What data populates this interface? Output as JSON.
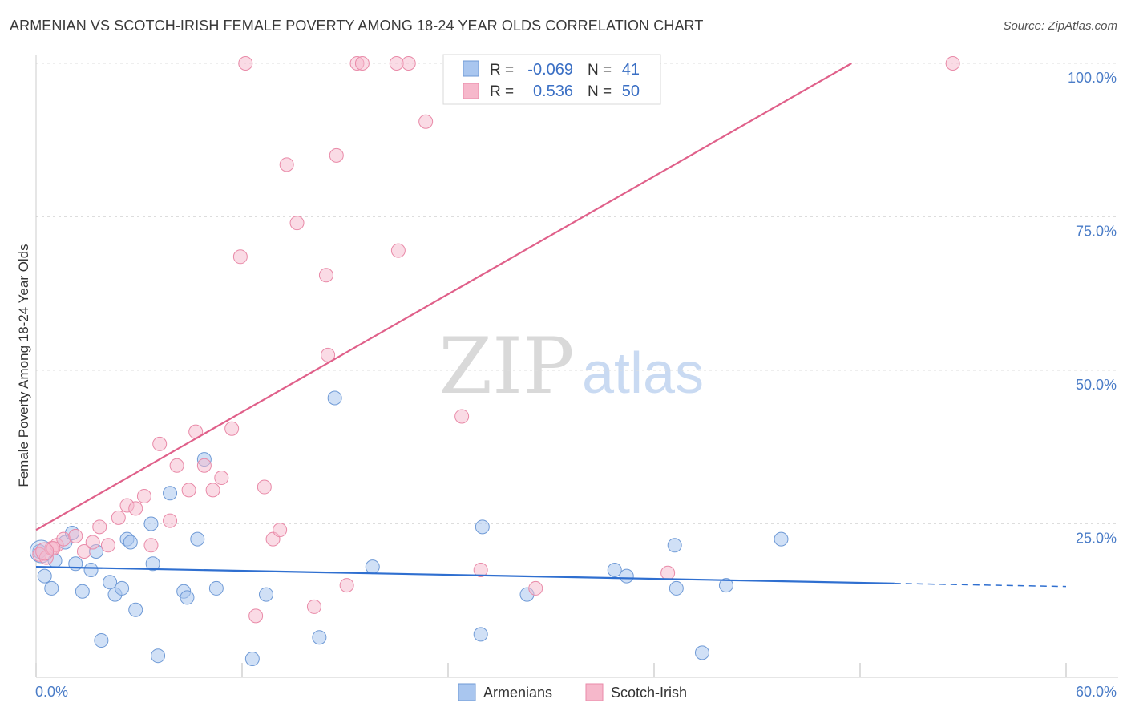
{
  "title": "ARMENIAN VS SCOTCH-IRISH FEMALE POVERTY AMONG 18-24 YEAR OLDS CORRELATION CHART",
  "source": "Source: ZipAtlas.com",
  "watermark": {
    "zip": "ZIP",
    "atlas": "atlas"
  },
  "colors": {
    "armenians_fill": "#a9c6ef",
    "armenians_stroke": "#6f9ad6",
    "armenians_line": "#2f6fd0",
    "scotch_fill": "#f6b8cb",
    "scotch_stroke": "#e98aa8",
    "scotch_line": "#e0608a",
    "tick_text": "#4a7cc7",
    "grid": "#dddddd"
  },
  "legend_top": {
    "rows": [
      {
        "r_label": "R =",
        "r_value": "-0.069",
        "n_label": "N =",
        "n_value": "41"
      },
      {
        "r_label": "R =",
        "r_value": "0.536",
        "n_label": "N =",
        "n_value": "50"
      }
    ]
  },
  "chart_data": {
    "type": "scatter",
    "title": "ARMENIAN VS SCOTCH-IRISH FEMALE POVERTY AMONG 18-24 YEAR OLDS CORRELATION CHART",
    "xlabel": "",
    "ylabel": "Female Poverty Among 18-24 Year Olds",
    "xlim": [
      0,
      60
    ],
    "ylim": [
      0,
      102
    ],
    "x_tick_labels": [
      "0.0%",
      "60.0%"
    ],
    "y_tick_values": [
      25,
      50,
      75,
      100
    ],
    "y_tick_labels": [
      "25.0%",
      "50.0%",
      "75.0%",
      "100.0%"
    ],
    "grid": true,
    "legend_position": "top-center and bottom",
    "series": [
      {
        "name": "Armenians",
        "r": -0.069,
        "n": 41,
        "trend": {
          "x0": 0,
          "y0": 18.0,
          "x1": 50,
          "y1": 15.3,
          "dashed_to_x": 60,
          "dashed_y_end": 14.8
        },
        "points": [
          [
            0.2,
            20.5
          ],
          [
            0.5,
            16.5
          ],
          [
            0.9,
            14.5
          ],
          [
            1.1,
            19.0
          ],
          [
            1.7,
            22.0
          ],
          [
            2.1,
            23.5
          ],
          [
            2.3,
            18.5
          ],
          [
            2.7,
            14.0
          ],
          [
            3.2,
            17.5
          ],
          [
            3.5,
            20.5
          ],
          [
            3.8,
            6.0
          ],
          [
            4.3,
            15.5
          ],
          [
            4.6,
            13.5
          ],
          [
            5.0,
            14.5
          ],
          [
            5.8,
            11.0
          ],
          [
            5.3,
            22.5
          ],
          [
            5.5,
            22.0
          ],
          [
            6.7,
            25.0
          ],
          [
            6.8,
            18.5
          ],
          [
            7.1,
            3.5
          ],
          [
            7.8,
            30.0
          ],
          [
            8.6,
            14.0
          ],
          [
            8.8,
            13.0
          ],
          [
            9.4,
            22.5
          ],
          [
            9.8,
            35.5
          ],
          [
            10.5,
            14.5
          ],
          [
            12.6,
            3.0
          ],
          [
            13.4,
            13.5
          ],
          [
            16.5,
            6.5
          ],
          [
            17.4,
            45.5
          ],
          [
            19.6,
            18.0
          ],
          [
            26.0,
            24.5
          ],
          [
            25.9,
            7.0
          ],
          [
            28.6,
            13.5
          ],
          [
            33.7,
            17.5
          ],
          [
            34.4,
            16.5
          ],
          [
            37.2,
            21.5
          ],
          [
            37.3,
            14.5
          ],
          [
            38.8,
            4.0
          ],
          [
            40.2,
            15.0
          ],
          [
            43.4,
            22.5
          ]
        ]
      },
      {
        "name": "Scotch-Irish",
        "r": 0.536,
        "n": 50,
        "trend": {
          "x0": 0,
          "y0": 24.0,
          "x1": 47.5,
          "y1": 100.0
        },
        "points": [
          [
            0.2,
            20.0
          ],
          [
            0.6,
            19.5
          ],
          [
            0.9,
            21.0
          ],
          [
            1.2,
            21.5
          ],
          [
            1.6,
            22.5
          ],
          [
            2.3,
            23.0
          ],
          [
            2.8,
            20.5
          ],
          [
            3.3,
            22.0
          ],
          [
            3.7,
            24.5
          ],
          [
            4.2,
            21.5
          ],
          [
            4.8,
            26.0
          ],
          [
            5.3,
            28.0
          ],
          [
            5.8,
            27.5
          ],
          [
            6.3,
            29.5
          ],
          [
            6.7,
            21.5
          ],
          [
            7.2,
            38.0
          ],
          [
            7.8,
            25.5
          ],
          [
            8.2,
            34.5
          ],
          [
            8.9,
            30.5
          ],
          [
            9.3,
            40.0
          ],
          [
            9.8,
            34.5
          ],
          [
            10.3,
            30.5
          ],
          [
            10.8,
            32.5
          ],
          [
            11.4,
            40.5
          ],
          [
            11.9,
            68.5
          ],
          [
            12.2,
            100.0
          ],
          [
            12.8,
            10.0
          ],
          [
            13.3,
            31.0
          ],
          [
            13.8,
            22.5
          ],
          [
            14.2,
            24.0
          ],
          [
            14.6,
            83.5
          ],
          [
            15.2,
            74.0
          ],
          [
            16.2,
            11.5
          ],
          [
            16.9,
            65.5
          ],
          [
            17.0,
            52.5
          ],
          [
            17.5,
            85.0
          ],
          [
            18.1,
            15.0
          ],
          [
            18.7,
            100.0
          ],
          [
            19.0,
            100.0
          ],
          [
            21.0,
            100.0
          ],
          [
            21.7,
            100.0
          ],
          [
            21.1,
            69.5
          ],
          [
            22.7,
            90.5
          ],
          [
            24.8,
            42.5
          ],
          [
            25.9,
            17.5
          ],
          [
            29.1,
            14.5
          ],
          [
            33.7,
            100.0
          ],
          [
            36.8,
            17.0
          ],
          [
            53.4,
            100.0
          ],
          [
            1.0,
            21.0
          ]
        ]
      }
    ]
  }
}
